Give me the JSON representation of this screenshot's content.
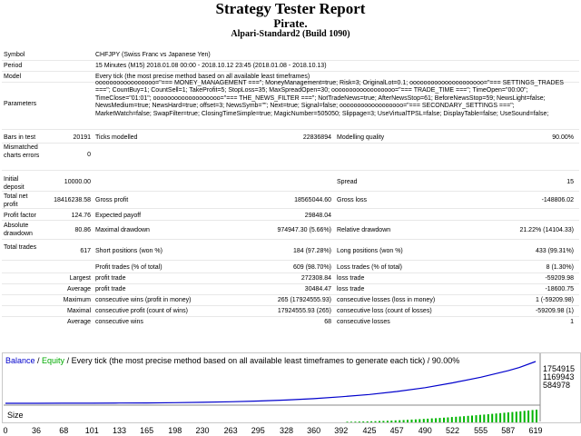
{
  "header": {
    "title": "Strategy Tester Report",
    "subtitle": "Pirate.",
    "server": "Alpari-Standard2 (Build 1090)"
  },
  "rows": {
    "symbol_label": "Symbol",
    "symbol_value": "CHFJPY (Swiss Franc vs Japanese Yen)",
    "period_label": "Period",
    "period_value": "15 Minutes (M15) 2018.01.08 00:00 - 2018.10.12 23:45 (2018.01.08 - 2018.10.13)",
    "model_label": "Model",
    "model_value": "Every tick (the most precise method based on all available least timeframes)",
    "parameters_label": "Parameters",
    "parameters_value": "ooooooooooooooooo=\"=== MONEY_MANAGEMENT ===\"; MoneyManagement=true; Risk=3; OriginalLot=0.1; ooooooooooooooooooooo=\"=== SETTINGS_TRADES ===\"; CountBuy=1; CountSell=1; TakeProfit=5; StopLoss=35; MaxSpreadOpen=30; oooooooooooooooooo=\"=== TRADE_TIME ===\"; TimeOpen=\"00:00\"; TimeClose=\"01:01\"; ooooooooooooooooooo=\"=== THE_NEWS_FILTER ===\"; NotTradeNews=true; AfterNewsStop=61; BeforeNewsStop=59; NewsLight=false; NewsMedium=true; NewsHard=true; offset=3; NewsSymb=\"\"; Next=true; Signal=false; oooooooooooooooooo=\"=== SECONDARY_SETTINGS ===\"; MarketWatch=false; SwapFilter=true; ClosingTimeSimple=true; MagicNumber=505050; Slippage=3; UseVirtualTPSL=false; DisplayTable=false; UseSound=false;",
    "bars_label": "Bars in test",
    "bars_value": "20191",
    "ticks_label": "Ticks modelled",
    "ticks_value": "22836894",
    "quality_label": "Modelling quality",
    "quality_value": "90.00%",
    "mismatch_label": "Mismatched charts errors",
    "mismatch_value": "0",
    "deposit_label": "Initial deposit",
    "deposit_value": "10000.00",
    "spread_label": "Spread",
    "spread_value": "15",
    "netprofit_label": "Total net profit",
    "netprofit_value": "18416238.58",
    "grossprofit_label": "Gross profit",
    "grossprofit_value": "18565044.60",
    "grossloss_label": "Gross loss",
    "grossloss_value": "-148806.02",
    "pf_label": "Profit factor",
    "pf_value": "124.76",
    "ep_label": "Expected payoff",
    "ep_value": "29848.04",
    "absdd_label": "Absolute drawdown",
    "absdd_value": "80.86",
    "maxdd_label": "Maximal drawdown",
    "maxdd_value": "974947.30 (5.66%)",
    "reldd_label": "Relative drawdown",
    "reldd_value": "21.22% (14104.33)",
    "trades_label": "Total trades",
    "trades_value": "617",
    "short_label": "Short positions (won %)",
    "short_value": "184 (97.28%)",
    "long_label": "Long positions (won %)",
    "long_value": "433 (99.31%)",
    "ptrades_label": "Profit trades (% of total)",
    "ptrades_value": "609 (98.70%)",
    "ltrades_label": "Loss trades (% of total)",
    "ltrades_value": "8 (1.30%)",
    "largest_label": "Largest",
    "lp_label": "profit trade",
    "lp_value": "272308.84",
    "ll_label": "loss trade",
    "ll_value": "-59209.98",
    "average_label": "Average",
    "ap_label": "profit trade",
    "ap_value": "30484.47",
    "al_label": "loss trade",
    "al_value": "-18600.75",
    "maximum_label": "Maximum",
    "mcw_label": "consecutive wins (profit in money)",
    "mcw_value": "265 (17924555.93)",
    "mcl_label": "consecutive losses (loss in money)",
    "mcl_value": "1 (-59209.98)",
    "maximal_label": "Maximal",
    "mcp_label": "consecutive profit (count of wins)",
    "mcp_value": "17924555.93 (265)",
    "mclc_label": "consecutive loss (count of losses)",
    "mclc_value": "-59209.98 (1)",
    "average2_label": "Average",
    "acw_label": "consecutive wins",
    "acw_value": "68",
    "acl_label": "consecutive losses",
    "acl_value": "1"
  },
  "chart": {
    "legend_balance": "Balance",
    "legend_slash": " / ",
    "legend_equity": "Equity",
    "legend_rest": " / Every tick (the most precise method based on all available least timeframes to generate each tick) / 90.00%",
    "size_label": "Size",
    "balance_color": "#0000cc",
    "equity_color": "#00aa00",
    "volume_color": "#00b400"
  },
  "chart_data": {
    "type": "line",
    "y_ticks": [
      "1754915",
      "1169943",
      "584978"
    ],
    "x_ticks": [
      "0",
      "36",
      "68",
      "101",
      "133",
      "165",
      "198",
      "230",
      "263",
      "295",
      "328",
      "360",
      "392",
      "425",
      "457",
      "490",
      "522",
      "555",
      "587",
      "619"
    ],
    "xlim": [
      0,
      619
    ],
    "ylim": [
      10000,
      18426238
    ],
    "series": [
      {
        "name": "Balance",
        "x": [
          0,
          36,
          68,
          101,
          133,
          165,
          198,
          230,
          263,
          295,
          328,
          360,
          392,
          425,
          457,
          490,
          522,
          555,
          587,
          600,
          619
        ],
        "y": [
          10000,
          22000,
          40000,
          70000,
          120000,
          190000,
          290000,
          450000,
          680000,
          1000000,
          1450000,
          2050000,
          2900000,
          3900000,
          5200000,
          6900000,
          9000000,
          11500000,
          14400000,
          15800000,
          18426238
        ]
      }
    ],
    "volume": {
      "x_start": 398,
      "x_end": 619,
      "y_start": 0.05,
      "y_end": 1.0
    }
  }
}
